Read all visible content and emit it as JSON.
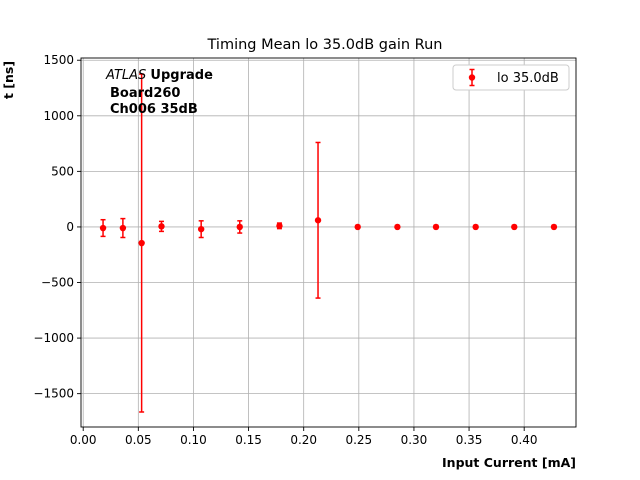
{
  "chart_data": {
    "type": "scatter",
    "title": "Timing Mean lo 35.0dB gain Run",
    "xlabel": "Input Current [mA]",
    "ylabel": "t [ns]",
    "xlim": [
      -0.002,
      0.447
    ],
    "ylim": [
      -1800,
      1520
    ],
    "xticks": [
      0.0,
      0.05,
      0.1,
      0.15,
      0.2,
      0.25,
      0.3,
      0.35,
      0.4
    ],
    "xtick_labels": [
      "0.00",
      "0.05",
      "0.10",
      "0.15",
      "0.20",
      "0.25",
      "0.30",
      "0.35",
      "0.40"
    ],
    "yticks": [
      -1500,
      -1000,
      -500,
      0,
      500,
      1000,
      1500
    ],
    "ytick_labels": [
      "−1500",
      "−1000",
      "−500",
      "0",
      "500",
      "1000",
      "1500"
    ],
    "grid": true,
    "legend_position": "upper right",
    "series": [
      {
        "name": "lo 35.0dB",
        "color": "#ff0000",
        "marker": "circle",
        "x": [
          0.018,
          0.036,
          0.053,
          0.071,
          0.107,
          0.142,
          0.178,
          0.213,
          0.249,
          0.285,
          0.32,
          0.356,
          0.391,
          0.427
        ],
        "y": [
          -10,
          -10,
          -145,
          5,
          -20,
          0,
          10,
          60,
          0,
          0,
          0,
          0,
          0,
          0
        ],
        "yerr": [
          75,
          85,
          1520,
          45,
          75,
          55,
          25,
          700,
          0,
          0,
          0,
          0,
          0,
          0
        ]
      }
    ],
    "annotations": {
      "line1_italic": "ATLAS",
      "line1_bold": "Upgrade",
      "line2": "Board260",
      "line3": "Ch006 35dB"
    }
  }
}
